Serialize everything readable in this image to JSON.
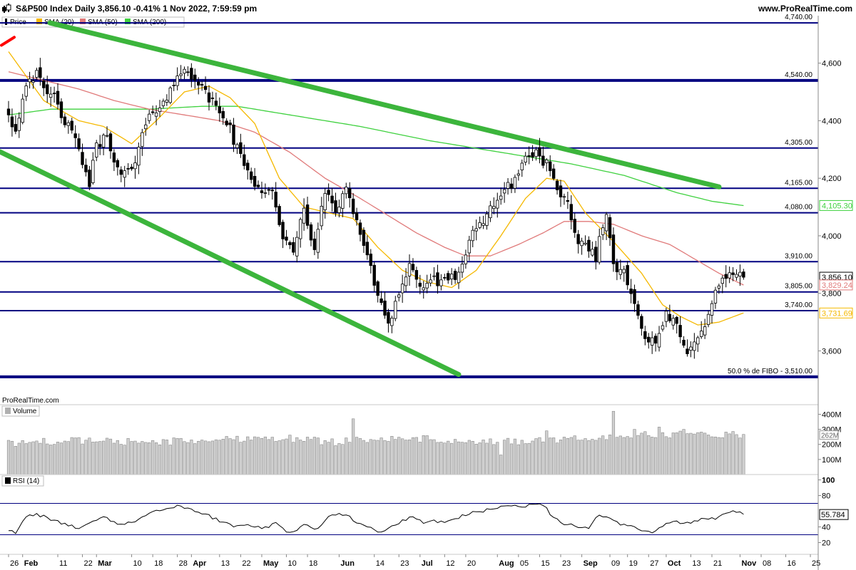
{
  "header": {
    "title": "S&P500 Index Daily 3,856.10 -0.41% 1 Nov 2022, 7:59:59 pm",
    "site": "www.ProRealTime.com",
    "watermark": "ProRealTime.com"
  },
  "legend": {
    "price": "Price",
    "sma20": "SMA (20)",
    "sma50": "SMA (50)",
    "sma200": "SMA (200)",
    "volume": "Volume",
    "rsi": "RSI (14)"
  },
  "colors": {
    "sma20": "#f5b800",
    "sma50": "#e07a7a",
    "sma200": "#3fd13f",
    "trend": "#3cb53c",
    "level": "#000080",
    "bull": "#ffffff",
    "bear": "#000000"
  },
  "price_axis": {
    "ticks": [
      {
        "value": 4600,
        "label": "4,600"
      },
      {
        "value": 4400,
        "label": "4,400"
      },
      {
        "value": 4200,
        "label": "4,200"
      },
      {
        "value": 4000,
        "label": "4,000"
      },
      {
        "value": 3800,
        "label": "3,800"
      },
      {
        "value": 3600,
        "label": "3,600"
      }
    ]
  },
  "levels": [
    {
      "value": 4740,
      "label": "4,740.00"
    },
    {
      "value": 4540,
      "label": "4,540.00"
    },
    {
      "value": 4305,
      "label": "4,305.00"
    },
    {
      "value": 4165,
      "label": "4,165.00"
    },
    {
      "value": 4080,
      "label": "4,080.00"
    },
    {
      "value": 3910,
      "label": "3,910.00"
    },
    {
      "value": 3805,
      "label": "3,805.00"
    },
    {
      "value": 3740,
      "label": "3,740.00"
    },
    {
      "value": 3510,
      "label": "50.0 % de FIBO -  3,510.00"
    }
  ],
  "tags": [
    {
      "label": "4,105.30",
      "value": 4105.3,
      "color": "#3fd13f"
    },
    {
      "label": "3,856.10",
      "value": 3856.1,
      "color": "#000000"
    },
    {
      "label": "3,829.24",
      "value": 3829.24,
      "color": "#e07a7a"
    },
    {
      "label": "3,731.69",
      "value": 3731.69,
      "color": "#f5b800"
    }
  ],
  "volume_axis": {
    "ticks": [
      {
        "value": 400,
        "label": "400M"
      },
      {
        "value": 300,
        "label": "300M"
      },
      {
        "value": 200,
        "label": "200M"
      },
      {
        "value": 100,
        "label": "100M"
      }
    ],
    "tag": {
      "value": 262,
      "label": "262M"
    }
  },
  "rsi_axis": {
    "ticks": [
      {
        "value": 100,
        "label": "100"
      },
      {
        "value": 80,
        "label": "80"
      },
      {
        "value": 40,
        "label": "40"
      },
      {
        "value": 20,
        "label": "20"
      }
    ],
    "tag": {
      "value": 55.784,
      "label": "55.784"
    },
    "bands": [
      70,
      30
    ]
  },
  "x_axis": {
    "labels": [
      {
        "i": 0,
        "text": "26",
        "month": false
      },
      {
        "i": 4,
        "text": "Feb",
        "month": true
      },
      {
        "i": 14,
        "text": "11",
        "month": false
      },
      {
        "i": 21,
        "text": "22",
        "month": false
      },
      {
        "i": 25,
        "text": "Mar",
        "month": true
      },
      {
        "i": 35,
        "text": "10",
        "month": false
      },
      {
        "i": 41,
        "text": "18",
        "month": false
      },
      {
        "i": 48,
        "text": "28",
        "month": false
      },
      {
        "i": 52,
        "text": "Apr",
        "month": true
      },
      {
        "i": 60,
        "text": "13",
        "month": false
      },
      {
        "i": 66,
        "text": "22",
        "month": false
      },
      {
        "i": 72,
        "text": "May",
        "month": true
      },
      {
        "i": 79,
        "text": "10",
        "month": false
      },
      {
        "i": 85,
        "text": "18",
        "month": false
      },
      {
        "i": 94,
        "text": "Jun",
        "month": true
      },
      {
        "i": 104,
        "text": "14",
        "month": false
      },
      {
        "i": 111,
        "text": "23",
        "month": false
      },
      {
        "i": 117,
        "text": "Jul",
        "month": true
      },
      {
        "i": 124,
        "text": "12",
        "month": false
      },
      {
        "i": 130,
        "text": "20",
        "month": false
      },
      {
        "i": 139,
        "text": "Aug",
        "month": true
      },
      {
        "i": 145,
        "text": "05",
        "month": false
      },
      {
        "i": 151,
        "text": "15",
        "month": false
      },
      {
        "i": 157,
        "text": "23",
        "month": false
      },
      {
        "i": 163,
        "text": "Sep",
        "month": true
      },
      {
        "i": 171,
        "text": "09",
        "month": false
      },
      {
        "i": 176,
        "text": "19",
        "month": false
      },
      {
        "i": 182,
        "text": "27",
        "month": false
      },
      {
        "i": 187,
        "text": "Oct",
        "month": true
      },
      {
        "i": 194,
        "text": "13",
        "month": false
      },
      {
        "i": 200,
        "text": "21",
        "month": false
      },
      {
        "i": 208,
        "text": "Nov",
        "month": true
      },
      {
        "i": 214,
        "text": "08",
        "month": false
      },
      {
        "i": 221,
        "text": "16",
        "month": false
      },
      {
        "i": 228,
        "text": "25",
        "month": false
      }
    ],
    "bar_count": 210
  },
  "chart_data": {
    "type": "candlestick",
    "price_range": [
      3470,
      4760
    ],
    "series_keys": [
      "price",
      "sma20",
      "sma50",
      "sma200",
      "volume",
      "rsi"
    ],
    "anchors": {
      "close": [
        [
          0,
          4430
        ],
        [
          2,
          4360
        ],
        [
          5,
          4540
        ],
        [
          8,
          4560
        ],
        [
          10,
          4500
        ],
        [
          13,
          4480
        ],
        [
          16,
          4400
        ],
        [
          20,
          4300
        ],
        [
          23,
          4180
        ],
        [
          25,
          4310
        ],
        [
          28,
          4350
        ],
        [
          32,
          4200
        ],
        [
          36,
          4250
        ],
        [
          38,
          4350
        ],
        [
          41,
          4430
        ],
        [
          44,
          4470
        ],
        [
          47,
          4520
        ],
        [
          50,
          4590
        ],
        [
          53,
          4550
        ],
        [
          56,
          4490
        ],
        [
          59,
          4450
        ],
        [
          62,
          4400
        ],
        [
          65,
          4300
        ],
        [
          68,
          4220
        ],
        [
          71,
          4170
        ],
        [
          75,
          4150
        ],
        [
          78,
          4000
        ],
        [
          81,
          3930
        ],
        [
          84,
          4100
        ],
        [
          87,
          3950
        ],
        [
          90,
          4150
        ],
        [
          93,
          4100
        ],
        [
          96,
          4150
        ],
        [
          99,
          4060
        ],
        [
          102,
          3920
        ],
        [
          105,
          3800
        ],
        [
          108,
          3700
        ],
        [
          111,
          3800
        ],
        [
          114,
          3900
        ],
        [
          117,
          3820
        ],
        [
          120,
          3850
        ],
        [
          123,
          3830
        ],
        [
          126,
          3850
        ],
        [
          129,
          3900
        ],
        [
          132,
          4000
        ],
        [
          135,
          4050
        ],
        [
          138,
          4120
        ],
        [
          141,
          4150
        ],
        [
          144,
          4200
        ],
        [
          147,
          4270
        ],
        [
          150,
          4290
        ],
        [
          153,
          4250
        ],
        [
          156,
          4150
        ],
        [
          159,
          4100
        ],
        [
          161,
          4000
        ],
        [
          164,
          3970
        ],
        [
          167,
          3930
        ],
        [
          170,
          4080
        ],
        [
          172,
          3900
        ],
        [
          175,
          3880
        ],
        [
          178,
          3780
        ],
        [
          181,
          3640
        ],
        [
          184,
          3620
        ],
        [
          187,
          3730
        ],
        [
          190,
          3680
        ],
        [
          193,
          3580
        ],
        [
          195,
          3640
        ],
        [
          198,
          3700
        ],
        [
          201,
          3800
        ],
        [
          204,
          3860
        ],
        [
          207,
          3872
        ],
        [
          209,
          3856
        ]
      ],
      "sma20": [
        [
          0,
          4640
        ],
        [
          10,
          4470
        ],
        [
          20,
          4400
        ],
        [
          27,
          4380
        ],
        [
          35,
          4320
        ],
        [
          42,
          4400
        ],
        [
          50,
          4500
        ],
        [
          57,
          4520
        ],
        [
          63,
          4480
        ],
        [
          70,
          4390
        ],
        [
          77,
          4200
        ],
        [
          84,
          4100
        ],
        [
          91,
          4080
        ],
        [
          98,
          4060
        ],
        [
          105,
          3960
        ],
        [
          112,
          3880
        ],
        [
          119,
          3840
        ],
        [
          126,
          3820
        ],
        [
          133,
          3880
        ],
        [
          140,
          4000
        ],
        [
          147,
          4130
        ],
        [
          153,
          4200
        ],
        [
          158,
          4190
        ],
        [
          164,
          4080
        ],
        [
          172,
          3980
        ],
        [
          180,
          3870
        ],
        [
          186,
          3760
        ],
        [
          191,
          3720
        ],
        [
          196,
          3690
        ],
        [
          202,
          3700
        ],
        [
          209,
          3732
        ]
      ],
      "sma50": [
        [
          0,
          4570
        ],
        [
          10,
          4540
        ],
        [
          20,
          4510
        ],
        [
          30,
          4470
        ],
        [
          40,
          4440
        ],
        [
          50,
          4420
        ],
        [
          60,
          4400
        ],
        [
          70,
          4360
        ],
        [
          80,
          4290
        ],
        [
          90,
          4200
        ],
        [
          100,
          4130
        ],
        [
          108,
          4070
        ],
        [
          116,
          4010
        ],
        [
          124,
          3960
        ],
        [
          130,
          3930
        ],
        [
          137,
          3930
        ],
        [
          145,
          3970
        ],
        [
          152,
          4010
        ],
        [
          158,
          4050
        ],
        [
          165,
          4050
        ],
        [
          172,
          4040
        ],
        [
          180,
          4000
        ],
        [
          188,
          3970
        ],
        [
          195,
          3920
        ],
        [
          202,
          3870
        ],
        [
          209,
          3829
        ]
      ],
      "sma200": [
        [
          0,
          4420
        ],
        [
          12,
          4440
        ],
        [
          25,
          4440
        ],
        [
          40,
          4440
        ],
        [
          55,
          4450
        ],
        [
          65,
          4450
        ],
        [
          80,
          4420
        ],
        [
          100,
          4380
        ],
        [
          120,
          4330
        ],
        [
          140,
          4290
        ],
        [
          160,
          4250
        ],
        [
          175,
          4210
        ],
        [
          190,
          4150
        ],
        [
          200,
          4120
        ],
        [
          209,
          4105
        ]
      ],
      "rsi": [
        [
          0,
          34
        ],
        [
          2,
          33
        ],
        [
          5,
          52
        ],
        [
          8,
          56
        ],
        [
          12,
          50
        ],
        [
          16,
          44
        ],
        [
          20,
          38
        ],
        [
          23,
          45
        ],
        [
          27,
          52
        ],
        [
          32,
          42
        ],
        [
          36,
          48
        ],
        [
          40,
          58
        ],
        [
          44,
          62
        ],
        [
          48,
          66
        ],
        [
          52,
          62
        ],
        [
          56,
          56
        ],
        [
          60,
          48
        ],
        [
          64,
          40
        ],
        [
          68,
          42
        ],
        [
          72,
          38
        ],
        [
          76,
          44
        ],
        [
          80,
          32
        ],
        [
          84,
          42
        ],
        [
          88,
          38
        ],
        [
          91,
          54
        ],
        [
          94,
          58
        ],
        [
          97,
          52
        ],
        [
          100,
          44
        ],
        [
          103,
          38
        ],
        [
          106,
          32
        ],
        [
          109,
          42
        ],
        [
          112,
          48
        ],
        [
          115,
          52
        ],
        [
          118,
          46
        ],
        [
          121,
          48
        ],
        [
          124,
          46
        ],
        [
          128,
          52
        ],
        [
          131,
          58
        ],
        [
          135,
          60
        ],
        [
          138,
          64
        ],
        [
          141,
          66
        ],
        [
          144,
          68
        ],
        [
          147,
          66
        ],
        [
          150,
          70
        ],
        [
          152,
          68
        ],
        [
          155,
          52
        ],
        [
          158,
          44
        ],
        [
          162,
          40
        ],
        [
          165,
          38
        ],
        [
          168,
          56
        ],
        [
          171,
          50
        ],
        [
          174,
          44
        ],
        [
          177,
          40
        ],
        [
          180,
          36
        ],
        [
          183,
          34
        ],
        [
          186,
          42
        ],
        [
          189,
          48
        ],
        [
          192,
          44
        ],
        [
          195,
          46
        ],
        [
          198,
          52
        ],
        [
          201,
          50
        ],
        [
          204,
          58
        ],
        [
          206,
          62
        ],
        [
          209,
          56
        ]
      ],
      "volume": [
        [
          0,
          210
        ],
        [
          20,
          225
        ],
        [
          40,
          215
        ],
        [
          60,
          230
        ],
        [
          70,
          245
        ],
        [
          80,
          240
        ],
        [
          93,
          215
        ],
        [
          100,
          240
        ],
        [
          110,
          230
        ],
        [
          120,
          235
        ],
        [
          130,
          205
        ],
        [
          140,
          215
        ],
        [
          150,
          225
        ],
        [
          160,
          230
        ],
        [
          166,
          245
        ],
        [
          172,
          255
        ],
        [
          180,
          260
        ],
        [
          190,
          270
        ],
        [
          200,
          265
        ],
        [
          209,
          262
        ]
      ]
    },
    "volume_spikes": [
      [
        98,
        370
      ],
      [
        115,
        245
      ],
      [
        140,
        130
      ],
      [
        153,
        290
      ],
      [
        172,
        420
      ],
      [
        178,
        300
      ],
      [
        185,
        315
      ],
      [
        192,
        300
      ]
    ]
  }
}
